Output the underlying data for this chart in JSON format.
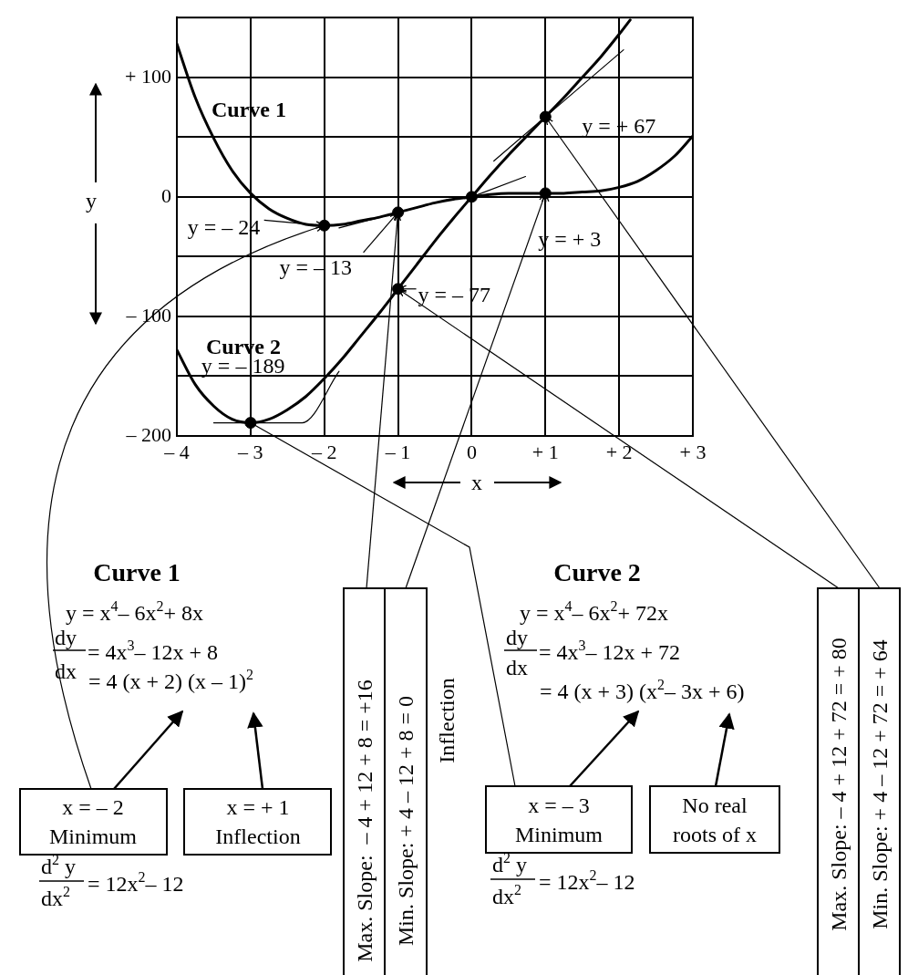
{
  "chart_data": {
    "type": "line",
    "xlabel": "x",
    "ylabel": "y",
    "xlim": [
      -4,
      3
    ],
    "ylim": [
      -200,
      150
    ],
    "xticks": [
      {
        "value": -4,
        "label": "– 4"
      },
      {
        "value": -3,
        "label": "– 3"
      },
      {
        "value": -2,
        "label": "– 2"
      },
      {
        "value": -1,
        "label": "– 1"
      },
      0,
      {
        "value": 1,
        "label": "+ 1"
      },
      {
        "value": 2,
        "label": "+ 2"
      },
      {
        "value": 3,
        "label": "+ 3"
      }
    ],
    "yticks": [
      {
        "value": -200,
        "label": "– 200"
      },
      {
        "value": -150,
        "label": null
      },
      {
        "value": -100,
        "label": "– 100"
      },
      {
        "value": -50,
        "label": null
      },
      0,
      {
        "value": 50,
        "label": null
      },
      {
        "value": 100,
        "label": "+ 100"
      }
    ],
    "grid": true,
    "legend": false,
    "series": [
      {
        "name": "Curve 1",
        "type": "line",
        "color": "#000000",
        "x": [
          -4,
          -3.75,
          -3.5,
          -3.25,
          -3,
          -2.75,
          -2.5,
          -2.25,
          -2,
          -1.75,
          -1.5,
          -1.25,
          -1,
          -0.75,
          -0.5,
          -0.25,
          0,
          0.25,
          0.5,
          0.75,
          1,
          1.25,
          1.5,
          1.75,
          2,
          2.25,
          2.5,
          2.75,
          3
        ],
        "values": [
          128,
          83,
          49,
          22,
          3,
          -10,
          -18,
          -23,
          -24,
          -23,
          -20,
          -17,
          -13,
          -9,
          -5,
          -2,
          0,
          2,
          3,
          3,
          3,
          3,
          4,
          5,
          8,
          13,
          22,
          34,
          51
        ]
      },
      {
        "name": "Curve 2",
        "type": "line",
        "color": "#000000",
        "x": [
          -4,
          -3.75,
          -3.5,
          -3.25,
          -3,
          -2.75,
          -2.5,
          -2.25,
          -2,
          -1.75,
          -1.5,
          -1.25,
          -1,
          -0.75,
          -0.5,
          -0.25,
          0,
          0.25,
          0.5,
          0.75,
          1,
          1.25,
          1.5,
          1.75,
          2,
          2.15
        ],
        "values": [
          -128,
          -157,
          -175,
          -186,
          -189,
          -186,
          -178,
          -167,
          -152,
          -135,
          -116,
          -97,
          -77,
          -57,
          -37,
          -18,
          0,
          18,
          35,
          51,
          67,
          83,
          100,
          117,
          136,
          148
        ]
      },
      {
        "type": "line",
        "color": "#000000",
        "x": [
          -1.8,
          -0.3
        ],
        "values": [
          -26,
          -2
        ]
      },
      {
        "type": "line",
        "color": "#000000",
        "x": [
          0,
          0.73
        ],
        "values": [
          0,
          17
        ]
      },
      {
        "type": "line",
        "color": "#000000",
        "x": [
          0.3,
          2.06
        ],
        "values": [
          30,
          123
        ]
      },
      {
        "type": "line",
        "color": "#000000",
        "x": [
          -3.5,
          -2.3,
          -1.8
        ],
        "values": [
          -189,
          -189,
          -146
        ]
      },
      {
        "type": "scatter",
        "marker": "circle",
        "color": "#000000",
        "x": [
          -2,
          -1,
          0,
          1,
          1,
          -1,
          -3
        ],
        "values": [
          -24,
          -13,
          0,
          3,
          67,
          -77,
          -189
        ]
      }
    ],
    "annotations": [
      {
        "text": "y = – 24",
        "x": -2,
        "y": -24
      },
      {
        "text": "y = – 13",
        "x": -1,
        "y": -13
      },
      {
        "text": "y = – 77",
        "x": -1,
        "y": -77
      },
      {
        "text": "y = + 3",
        "x": 1,
        "y": 3
      },
      {
        "text": "y = + 67",
        "x": 1,
        "y": 67
      },
      {
        "text": "y = – 189",
        "x": -3,
        "y": -189
      },
      "Curve 1",
      "y = x$^{4}$– 6x$^{2}$+ 8x",
      "dy",
      "dx",
      "= 4x$^{3}$– 12x + 8",
      "= 4 (x + 2) (x – 1)$^{2}$",
      "x = – 2",
      "Minimum",
      "x = + 1",
      "Inflection",
      "d$^{2}$ y",
      "dx$^{2}$",
      "= 12x$^{2}$– 12",
      "Max. Slope:  – 4 + 12 + 8 = +16",
      "Min. Slope: + 4 – 12 + 8 = 0",
      "Inflection",
      "Curve 2",
      "y = x$^{4}$– 6x$^{2}$+ 72x",
      "dy",
      "dx",
      "= 4x$^{3}$– 12x + 72",
      "= 4 (x + 3) (x$^{2}$– 3x + 6)",
      "x = – 3",
      "Minimum",
      "No real",
      "roots of x",
      "d$^{2}$ y",
      "dx$^{2}$",
      "= 12x$^{2}$– 12",
      "Max. Slope: – 4 + 12 + 72 = + 80",
      "Min. Slope: + 4 – 12 + 72 = + 64"
    ]
  }
}
